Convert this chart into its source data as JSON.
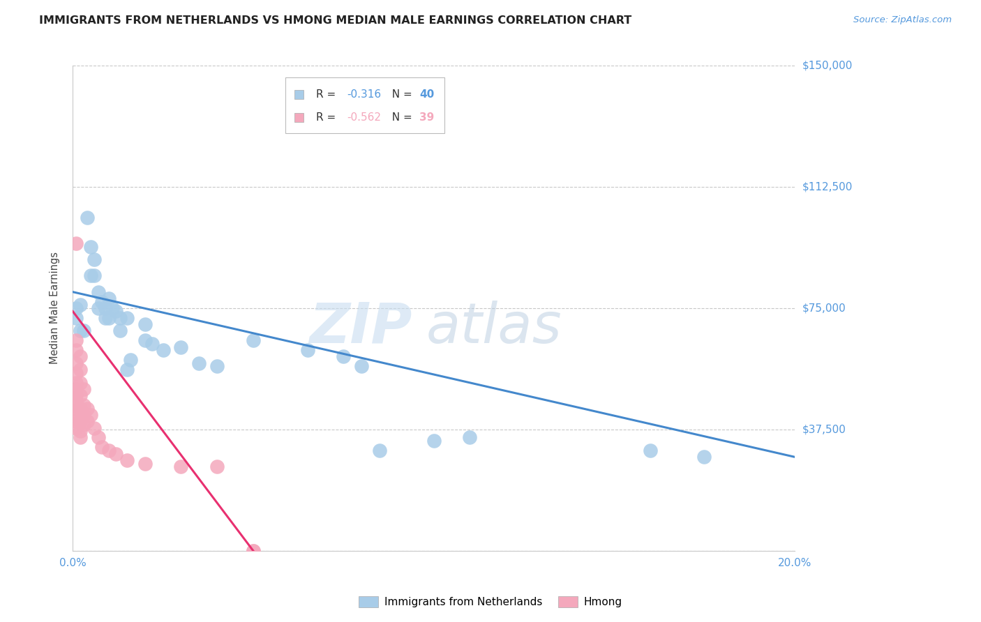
{
  "title": "IMMIGRANTS FROM NETHERLANDS VS HMONG MEDIAN MALE EARNINGS CORRELATION CHART",
  "source": "Source: ZipAtlas.com",
  "ylabel_label": "Median Male Earnings",
  "watermark_zip": "ZIP",
  "watermark_atlas": "atlas",
  "xlim": [
    0.0,
    0.2
  ],
  "ylim": [
    0,
    150000
  ],
  "yticks": [
    0,
    37500,
    75000,
    112500,
    150000
  ],
  "ytick_labels": [
    "",
    "$37,500",
    "$75,000",
    "$112,500",
    "$150,000"
  ],
  "xtick_positions": [
    0.0,
    0.2
  ],
  "xtick_labels": [
    "0.0%",
    "20.0%"
  ],
  "legend_blue_R": "-0.316",
  "legend_blue_N": "40",
  "legend_pink_R": "-0.562",
  "legend_pink_N": "39",
  "blue_color": "#a8cce8",
  "pink_color": "#f4a8bc",
  "line_blue": "#4488cc",
  "line_pink": "#e83070",
  "blue_scatter": [
    [
      0.001,
      75000
    ],
    [
      0.001,
      72000
    ],
    [
      0.002,
      76000
    ],
    [
      0.002,
      68000
    ],
    [
      0.003,
      68000
    ],
    [
      0.004,
      103000
    ],
    [
      0.005,
      94000
    ],
    [
      0.005,
      85000
    ],
    [
      0.006,
      90000
    ],
    [
      0.006,
      85000
    ],
    [
      0.007,
      80000
    ],
    [
      0.007,
      75000
    ],
    [
      0.008,
      77000
    ],
    [
      0.009,
      75000
    ],
    [
      0.009,
      72000
    ],
    [
      0.01,
      78000
    ],
    [
      0.01,
      72000
    ],
    [
      0.011,
      75000
    ],
    [
      0.012,
      74000
    ],
    [
      0.013,
      72000
    ],
    [
      0.013,
      68000
    ],
    [
      0.015,
      72000
    ],
    [
      0.015,
      56000
    ],
    [
      0.016,
      59000
    ],
    [
      0.02,
      70000
    ],
    [
      0.02,
      65000
    ],
    [
      0.022,
      64000
    ],
    [
      0.025,
      62000
    ],
    [
      0.03,
      63000
    ],
    [
      0.035,
      58000
    ],
    [
      0.04,
      57000
    ],
    [
      0.05,
      65000
    ],
    [
      0.065,
      62000
    ],
    [
      0.075,
      60000
    ],
    [
      0.08,
      57000
    ],
    [
      0.085,
      31000
    ],
    [
      0.1,
      34000
    ],
    [
      0.11,
      35000
    ],
    [
      0.16,
      31000
    ],
    [
      0.175,
      29000
    ]
  ],
  "pink_scatter": [
    [
      0.001,
      95000
    ],
    [
      0.001,
      65000
    ],
    [
      0.001,
      62000
    ],
    [
      0.001,
      58000
    ],
    [
      0.001,
      55000
    ],
    [
      0.001,
      52000
    ],
    [
      0.001,
      50000
    ],
    [
      0.001,
      48000
    ],
    [
      0.001,
      46000
    ],
    [
      0.001,
      44000
    ],
    [
      0.001,
      42000
    ],
    [
      0.001,
      40000
    ],
    [
      0.001,
      38000
    ],
    [
      0.002,
      60000
    ],
    [
      0.002,
      56000
    ],
    [
      0.002,
      52000
    ],
    [
      0.002,
      48000
    ],
    [
      0.002,
      44000
    ],
    [
      0.002,
      40000
    ],
    [
      0.002,
      37000
    ],
    [
      0.002,
      35000
    ],
    [
      0.003,
      50000
    ],
    [
      0.003,
      45000
    ],
    [
      0.003,
      42000
    ],
    [
      0.003,
      39000
    ],
    [
      0.004,
      44000
    ],
    [
      0.004,
      40000
    ],
    [
      0.005,
      42000
    ],
    [
      0.006,
      38000
    ],
    [
      0.007,
      35000
    ],
    [
      0.008,
      32000
    ],
    [
      0.01,
      31000
    ],
    [
      0.012,
      30000
    ],
    [
      0.015,
      28000
    ],
    [
      0.02,
      27000
    ],
    [
      0.03,
      26000
    ],
    [
      0.04,
      26000
    ],
    [
      0.05,
      0
    ],
    [
      0.05,
      0
    ]
  ],
  "blue_line_x": [
    0.0,
    0.2
  ],
  "blue_line_y": [
    80000,
    29000
  ],
  "pink_line_x": [
    0.0,
    0.05
  ],
  "pink_line_y": [
    74000,
    0
  ],
  "background_color": "#ffffff",
  "grid_color": "#c8c8c8",
  "title_fontsize": 11.5,
  "source_fontsize": 9.5,
  "axis_color": "#5599dd",
  "ylabel_color": "#444444"
}
